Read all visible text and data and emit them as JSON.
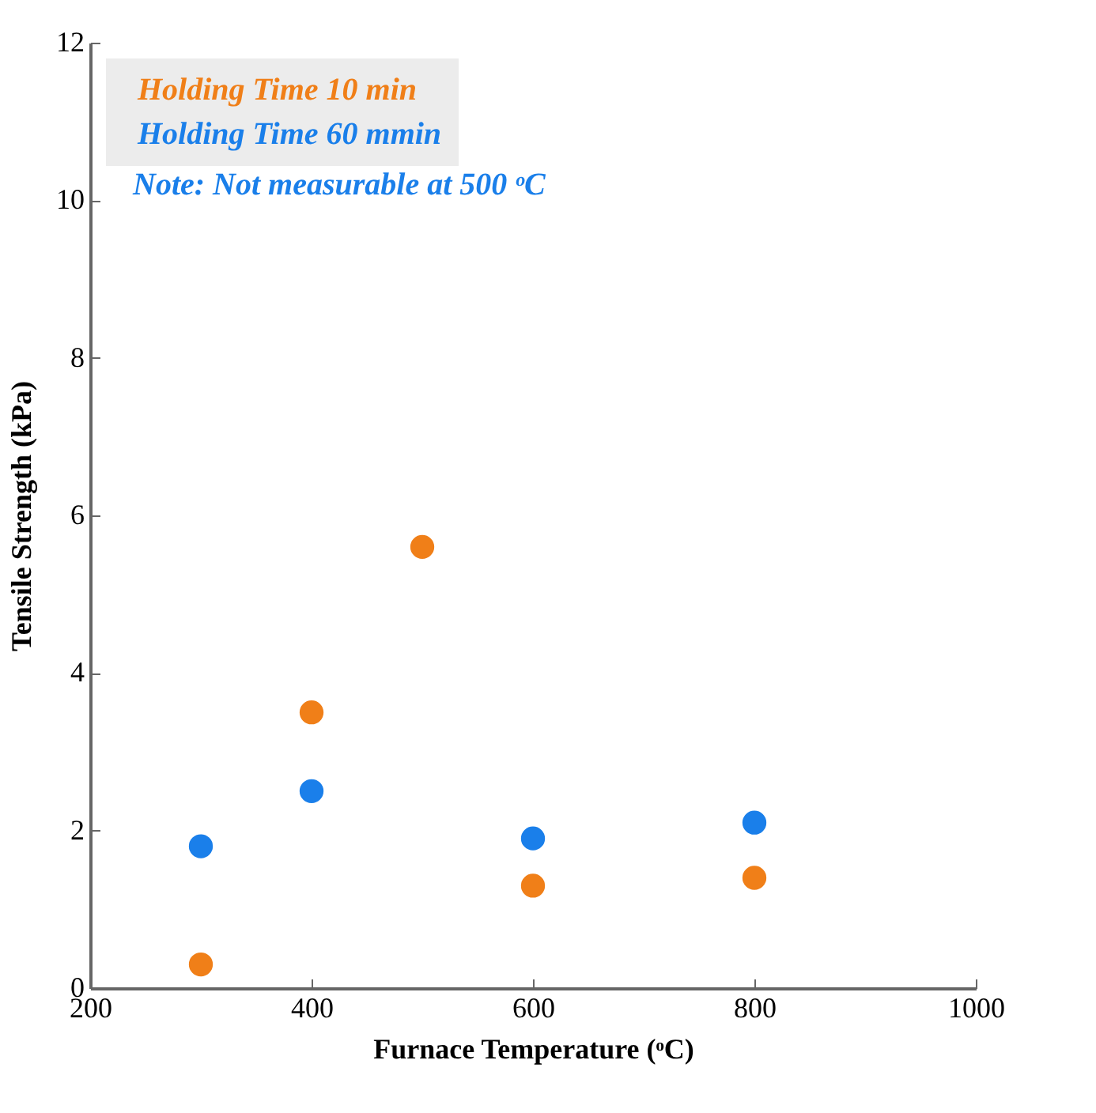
{
  "chart_data": {
    "type": "scatter",
    "xlabel": "Furnace Temperature (ᵒC)",
    "ylabel": "Tensile Strength (kPa)",
    "xlim": [
      200,
      1000
    ],
    "xticks": [
      200,
      400,
      600,
      800,
      1000
    ],
    "ylim": [
      0,
      12
    ],
    "yticks": [
      0,
      2,
      4,
      6,
      8,
      10,
      12
    ],
    "grid": false,
    "legend": "top left",
    "marker": "circle",
    "annotations": [
      "Note: Not measurable at 500 ᵒC"
    ],
    "series": [
      {
        "name": "Holding Time 10 min",
        "color": "#f07f18",
        "x": [
          300,
          400,
          500,
          600,
          800
        ],
        "values": [
          0.3,
          3.5,
          5.6,
          1.3,
          1.4
        ]
      },
      {
        "name": "Holding Time 60 mmin",
        "color": "#1a7fea",
        "x": [
          300,
          400,
          600,
          800
        ],
        "values": [
          1.8,
          2.5,
          1.9,
          2.1
        ]
      }
    ]
  }
}
